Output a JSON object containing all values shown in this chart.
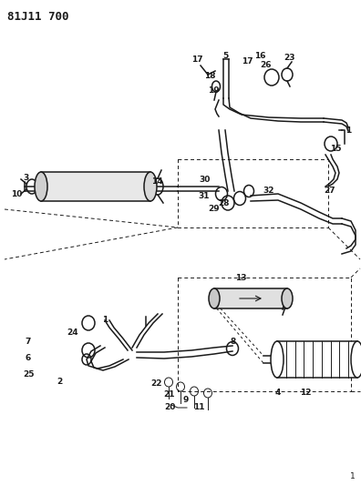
{
  "title": "81J11 700",
  "bg_color": "#ffffff",
  "line_color": "#1a1a1a",
  "title_fontsize": 9,
  "label_fontsize": 6.5,
  "fig_width": 3.96,
  "fig_height": 5.33,
  "dpi": 100
}
